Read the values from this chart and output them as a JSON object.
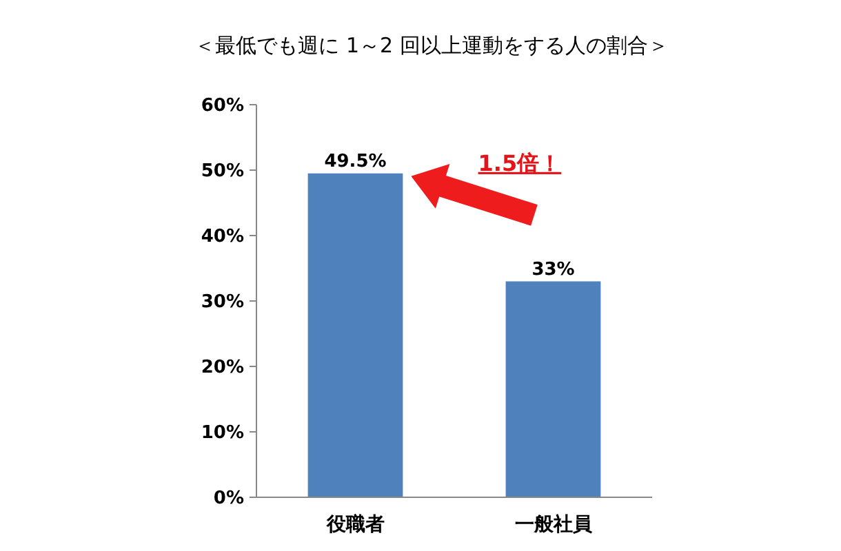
{
  "chart_data": {
    "type": "bar",
    "title": "＜最低でも週に 1～2 回以上運動をする人の割合＞",
    "categories": [
      "役職者",
      "一般社員"
    ],
    "values": [
      49.5,
      33
    ],
    "color": "#4f81bd",
    "value_labels": [
      "49.5%",
      "33%"
    ],
    "ylim": [
      0,
      60
    ],
    "yticks": [
      {
        "value": 0,
        "label": "0%"
      },
      {
        "value": 10,
        "label": "10%"
      },
      {
        "value": 20,
        "label": "20%"
      },
      {
        "value": 30,
        "label": "30%"
      },
      {
        "value": 40,
        "label": "40%"
      },
      {
        "value": 50,
        "label": "50%"
      },
      {
        "value": 60,
        "label": "60%"
      }
    ],
    "grid": false,
    "annotations": [
      "1.5倍！"
    ]
  }
}
